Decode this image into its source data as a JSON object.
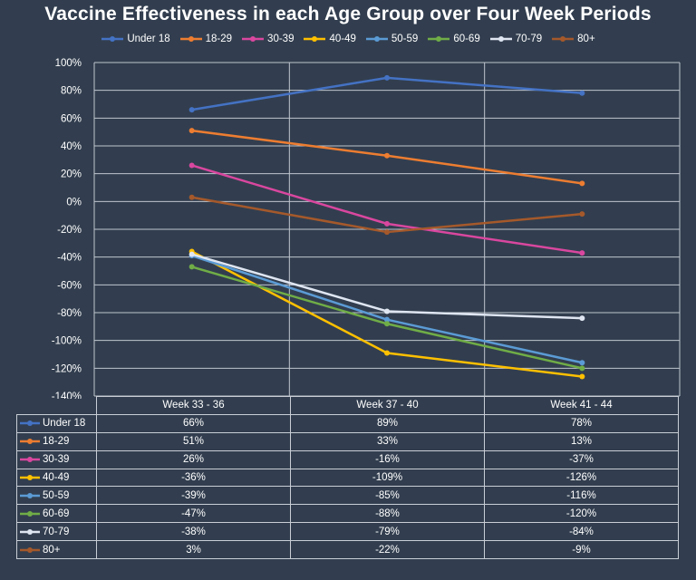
{
  "chart_data": {
    "type": "line",
    "title": "Vaccine Effectiveness in each Age Group over Four Week Periods",
    "categories": [
      "Week 33 - 36",
      "Week 37 - 40",
      "Week 41 - 44"
    ],
    "ylim": [
      -140,
      100
    ],
    "y_ticks": [
      100,
      80,
      60,
      40,
      20,
      0,
      -20,
      -40,
      -60,
      -80,
      -100,
      -120,
      -140
    ],
    "y_tick_labels": [
      "100%",
      "80%",
      "60%",
      "40%",
      "20%",
      "0%",
      "-20%",
      "-40%",
      "-60%",
      "-80%",
      "-100%",
      "-120%",
      "-140%"
    ],
    "grid": true,
    "legend_position": "top",
    "series": [
      {
        "name": "Under 18",
        "color": "#4472c4",
        "values": [
          66,
          89,
          78
        ],
        "labels": [
          "66%",
          "89%",
          "78%"
        ]
      },
      {
        "name": "18-29",
        "color": "#ed7d31",
        "values": [
          51,
          33,
          13
        ],
        "labels": [
          "51%",
          "33%",
          "13%"
        ]
      },
      {
        "name": "30-39",
        "color": "#d9479f",
        "values": [
          26,
          -16,
          -37
        ],
        "labels": [
          "26%",
          "-16%",
          "-37%"
        ]
      },
      {
        "name": "40-49",
        "color": "#ffc000",
        "values": [
          -36,
          -109,
          -126
        ],
        "labels": [
          "-36%",
          "-109%",
          "-126%"
        ]
      },
      {
        "name": "50-59",
        "color": "#5b9bd5",
        "values": [
          -39,
          -85,
          -116
        ],
        "labels": [
          "-39%",
          "-85%",
          "-116%"
        ]
      },
      {
        "name": "60-69",
        "color": "#70ad47",
        "values": [
          -47,
          -88,
          -120
        ],
        "labels": [
          "-47%",
          "-88%",
          "-120%"
        ]
      },
      {
        "name": "70-79",
        "color": "#dfe6f2",
        "values": [
          -38,
          -79,
          -84
        ],
        "labels": [
          "-38%",
          "-79%",
          "-84%"
        ]
      },
      {
        "name": "80+",
        "color": "#a5592b",
        "values": [
          3,
          -22,
          -9
        ],
        "labels": [
          "3%",
          "-22%",
          "-9%"
        ]
      }
    ]
  }
}
